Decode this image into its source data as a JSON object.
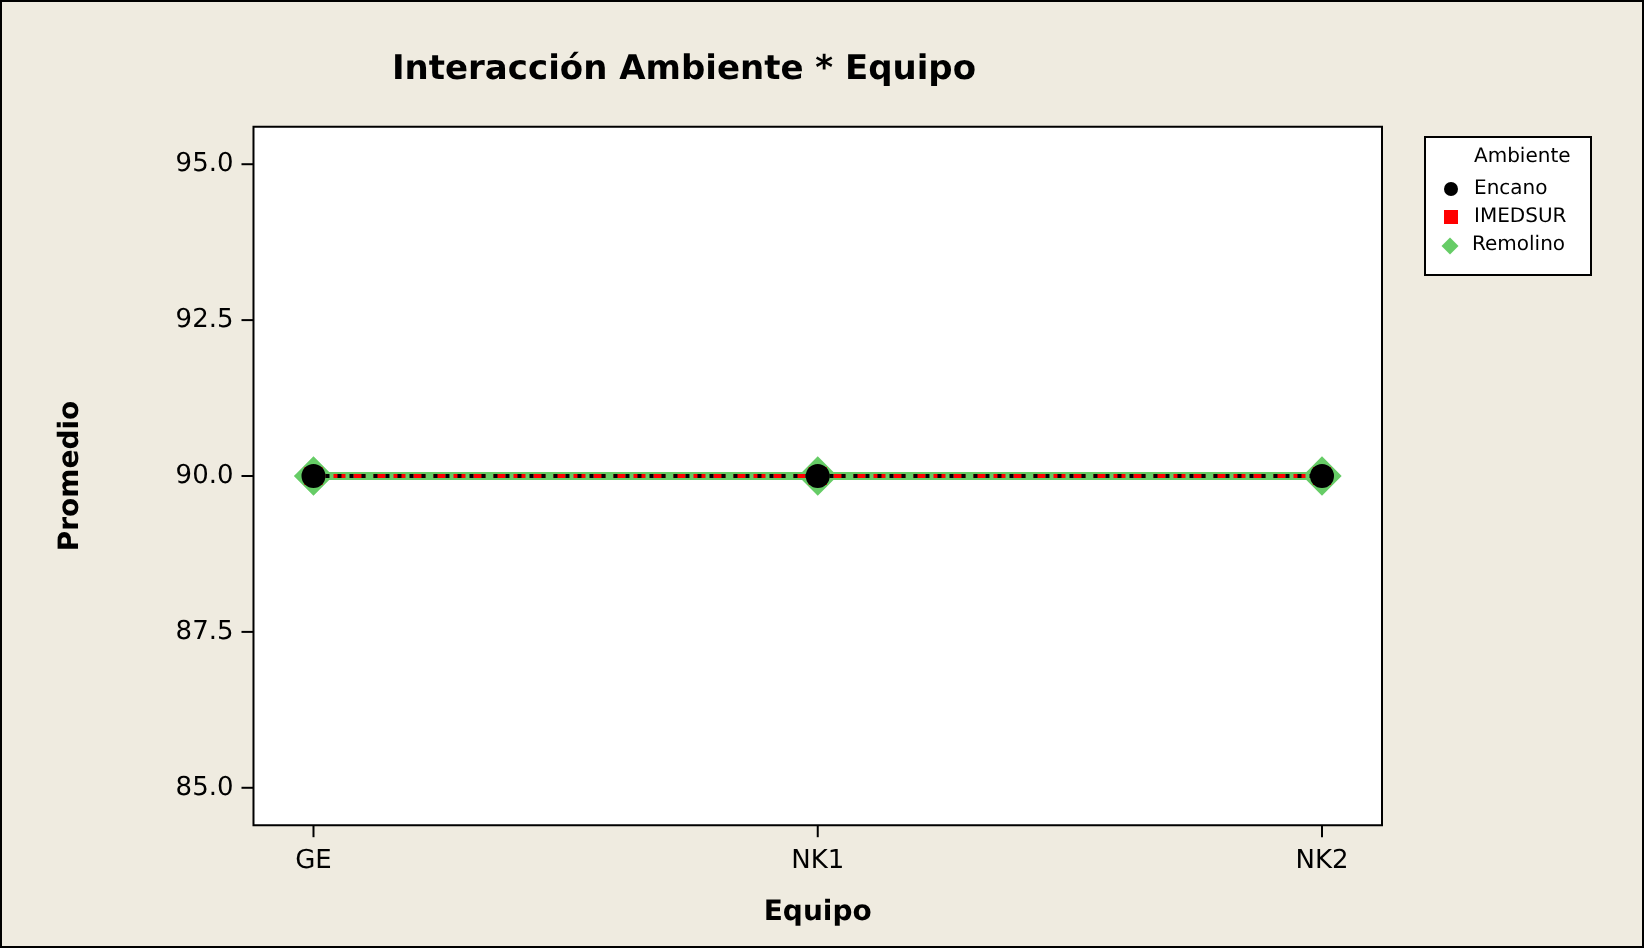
{
  "chart_data": {
    "type": "line",
    "title": "Interacción Ambiente * Equipo",
    "xlabel": "Equipo",
    "ylabel": "Promedio",
    "legend_title": "Ambiente",
    "legend": "right",
    "categories": [
      "GE",
      "NK1",
      "NK2"
    ],
    "series": [
      {
        "name": "Encano",
        "color": "#000000",
        "values": [
          90,
          90,
          90
        ],
        "marker": "circle",
        "line_style": "dotted"
      },
      {
        "name": "IMEDSUR",
        "color": "#ff0000",
        "values": [
          90,
          90,
          90
        ],
        "marker": "square",
        "line_style": "dashed"
      },
      {
        "name": "Remolino",
        "color": "#66cc66",
        "values": [
          90,
          90,
          90
        ],
        "marker": "diamond",
        "line_style": "solid"
      }
    ],
    "ylim": [
      84.4,
      95.6
    ],
    "yticks": [
      {
        "value": 85,
        "label": "85.0"
      },
      {
        "value": 87.5,
        "label": "87.5"
      },
      {
        "value": 90,
        "label": "90.0"
      },
      {
        "value": 92.5,
        "label": "92.5"
      },
      {
        "value": 95,
        "label": "95.0"
      }
    ],
    "grid": false
  }
}
